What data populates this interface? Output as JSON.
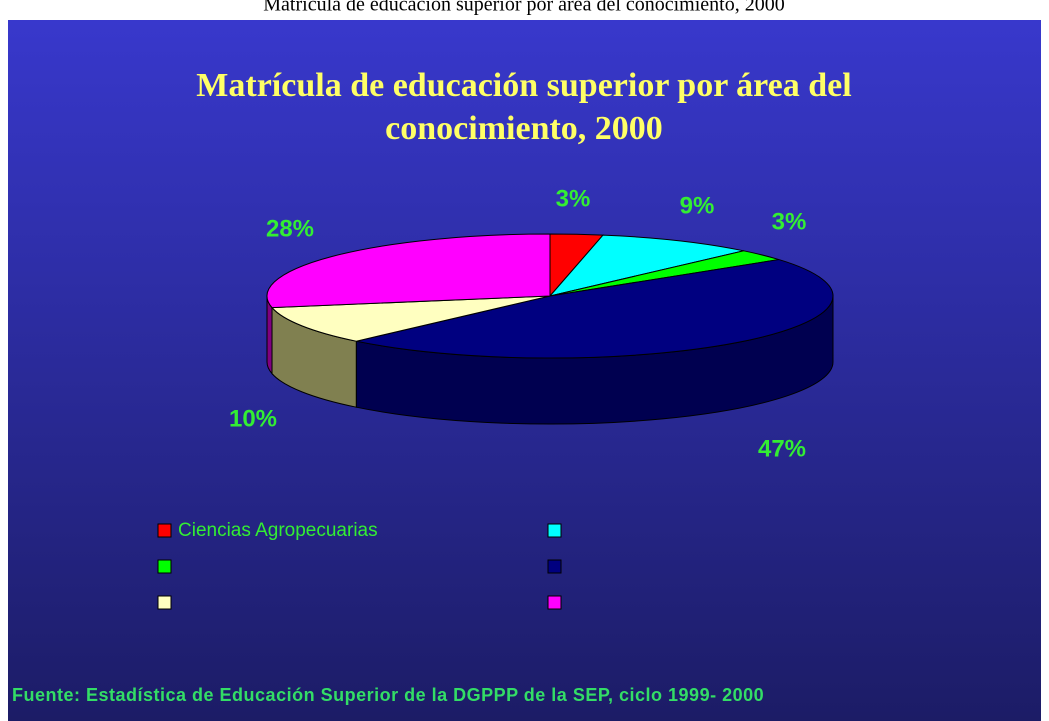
{
  "chart_data": {
    "type": "pie3d",
    "top_caption": "Matrícula de educación superior por área del conocimiento, 2000",
    "title": [
      "Matrícula de educación superior por área del",
      "conocimiento, 2000"
    ],
    "categories": [
      "Ciencias Agropecuarias",
      null,
      null,
      null,
      null,
      null
    ],
    "values": [
      3,
      9,
      3,
      47,
      10,
      28
    ],
    "value_labels": [
      "3%",
      "9%",
      "3%",
      "47%",
      "10%",
      "28%"
    ],
    "colors": [
      "#ff0000",
      "#00ffff",
      "#00ff00",
      "#000080",
      "#ffffc0",
      "#ff00ff"
    ],
    "side_colors": [
      "#800000",
      "#008080",
      "#008000",
      "#000050",
      "#808050",
      "#800080"
    ],
    "source": "Fuente: Estadística de Educación Superior de la DGPPP de la SEP, ciclo 1999- 2000"
  }
}
